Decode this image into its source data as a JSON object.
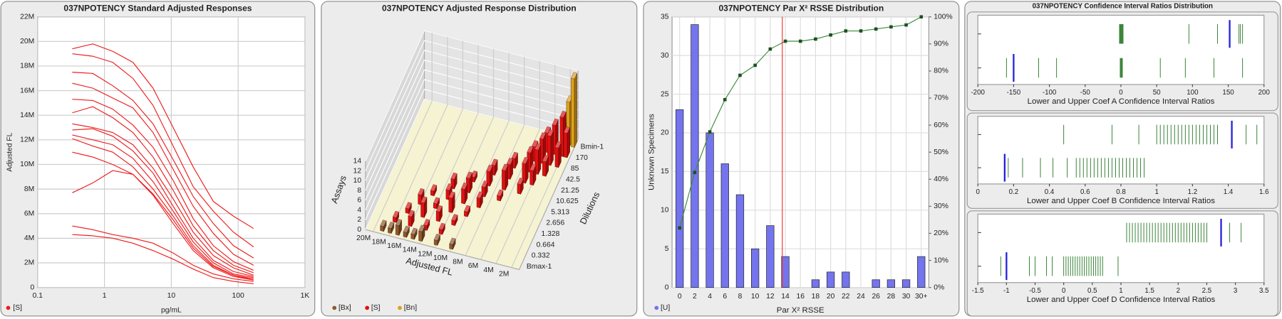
{
  "chart_data": [
    {
      "type": "line",
      "title": "037NPOTENCY Standard Adjusted Responses",
      "xlabel": "pg/mL",
      "ylabel": "Adjusted FL",
      "log_x": true,
      "xlim": [
        0.1,
        1000
      ],
      "xticks": [
        0.1,
        1,
        10,
        100,
        {
          "value": 1000,
          "label": "1K"
        }
      ],
      "ylim": [
        0,
        22000000.0
      ],
      "yticks": [
        0,
        {
          "value": 2000000.0,
          "label": "2M"
        },
        {
          "value": 4000000.0,
          "label": "4M"
        },
        {
          "value": 6000000.0,
          "label": "6M"
        },
        {
          "value": 8000000.0,
          "label": "8M"
        },
        {
          "value": 10000000.0,
          "label": "10M"
        },
        {
          "value": 12000000.0,
          "label": "12M"
        },
        {
          "value": 14000000.0,
          "label": "14M"
        },
        {
          "value": 16000000.0,
          "label": "16M"
        },
        {
          "value": 18000000.0,
          "label": "18M"
        },
        {
          "value": 20000000.0,
          "label": "20M"
        },
        {
          "value": 22000000.0,
          "label": "22M"
        }
      ],
      "grid": true,
      "color": "#ee1c1c",
      "legend": "[S]",
      "x": [
        0.33,
        0.67,
        1.33,
        2.67,
        5.33,
        10.67,
        21.3,
        42.5,
        85,
        170
      ],
      "series": [
        {
          "values": [
            19400000.0,
            19800000.0,
            19200000.0,
            18300000.0,
            16200000.0,
            13000000.0,
            9800000.0,
            7000000.0,
            5800000.0,
            4800000.0
          ]
        },
        {
          "values": [
            19000000.0,
            18800000.0,
            18300000.0,
            17000000.0,
            14800000.0,
            11500000.0,
            8200000.0,
            6200000.0,
            4500000.0,
            3300000.0
          ]
        },
        {
          "values": [
            17500000.0,
            17400000.0,
            16400000.0,
            15200000.0,
            13300000.0,
            10400000.0,
            7400000.0,
            5200000.0,
            3400000.0,
            2400000.0
          ]
        },
        {
          "values": [
            16600000.0,
            16200000.0,
            15400000.0,
            14600000.0,
            12600000.0,
            9600000.0,
            6600000.0,
            4400000.0,
            2700000.0,
            1800000.0
          ]
        },
        {
          "values": [
            15300000.0,
            15200000.0,
            14500000.0,
            13200000.0,
            11400000.0,
            8700000.0,
            5600000.0,
            3400000.0,
            2100000.0,
            1400000.0
          ]
        },
        {
          "values": [
            14200000.0,
            14700000.0,
            13800000.0,
            12600000.0,
            10600000.0,
            7900000.0,
            5000000.0,
            3000000.0,
            1800000.0,
            1200000.0
          ]
        },
        {
          "values": [
            13300000.0,
            13000000.0,
            12600000.0,
            11600000.0,
            9700000.0,
            7200000.0,
            4500000.0,
            2600000.0,
            1600000.0,
            1000000.0
          ]
        },
        {
          "values": [
            12800000.0,
            12900000.0,
            12300000.0,
            11100000.0,
            9300000.0,
            6600000.0,
            4000000.0,
            2200000.0,
            1300000.0,
            900000.0
          ]
        },
        {
          "values": [
            12400000.0,
            12000000.0,
            11600000.0,
            10500000.0,
            8600000.0,
            6200000.0,
            3700000.0,
            2000000.0,
            1100000.0,
            800000.0
          ]
        },
        {
          "values": [
            12100000.0,
            11500000.0,
            11000000.0,
            9800000.0,
            8000000.0,
            5800000.0,
            3400000.0,
            1800000.0,
            1000000.0,
            700000.0
          ]
        },
        {
          "values": [
            11000000.0,
            10600000.0,
            10000000.0,
            9200000.0,
            7500000.0,
            5200000.0,
            3000000.0,
            1600000.0,
            900000.0,
            600000.0
          ]
        },
        {
          "values": [
            7700000.0,
            8500000.0,
            9500000.0,
            9200000.0,
            7600000.0,
            5500000.0,
            3200000.0,
            1700000.0,
            1000000.0,
            600000.0
          ]
        },
        {
          "values": [
            5000000.0,
            4700000.0,
            4300000.0,
            4000000.0,
            3600000.0,
            2800000.0,
            1800000.0,
            1100000.0,
            700000.0,
            500000.0
          ]
        },
        {
          "values": [
            4300000.0,
            4200000.0,
            4000000.0,
            3600000.0,
            3000000.0,
            2300000.0,
            1500000.0,
            800000.0,
            500000.0,
            300000.0
          ]
        }
      ]
    },
    {
      "type": "bar3d",
      "title": "037NPOTENCY Adjusted Response Distribution",
      "xlabel": "Adjusted FL",
      "ylabel": "Dilutions",
      "zlabel": "Assays",
      "xlim": [
        1000000.0,
        21000000.0
      ],
      "xticks": [
        {
          "value": 2000000.0,
          "label": "2M"
        },
        {
          "value": 4000000.0,
          "label": "4M"
        },
        {
          "value": 6000000.0,
          "label": "6M"
        },
        {
          "value": 8000000.0,
          "label": "8M"
        },
        {
          "value": 10000000.0,
          "label": "10M"
        },
        {
          "value": 12000000.0,
          "label": "12M"
        },
        {
          "value": 14000000.0,
          "label": "14M"
        },
        {
          "value": 16000000.0,
          "label": "16M"
        },
        {
          "value": 18000000.0,
          "label": "18M"
        },
        {
          "value": 20000000.0,
          "label": "20M"
        }
      ],
      "categories": [
        "Bmax-1",
        "0.332",
        "0.664",
        "1.328",
        "2.656",
        "5.313",
        "10.625",
        "21.25",
        "42.5",
        "85",
        "170",
        "Bmin-1"
      ],
      "zlim": [
        0,
        14
      ],
      "zticks": [
        0,
        2,
        4,
        6,
        8,
        10,
        12,
        14
      ],
      "series": [
        {
          "name": "[Bx]",
          "color": "#8b5a2b",
          "x": [
            19000000.0,
            18000000.0,
            17000000.0,
            16000000.0,
            15000000.0,
            14000000.0,
            12000000.0,
            10000000.0
          ],
          "category": [
            0,
            0,
            0,
            0,
            0,
            0,
            0,
            0
          ],
          "values": [
            1,
            1,
            2,
            1,
            1,
            2,
            1,
            1
          ]
        },
        {
          "name": "[S]",
          "color": "#e01010",
          "x": [
            18000000.0,
            16000000.0,
            14000000.0,
            12000000.0,
            17000000.0,
            15000000.0,
            13000000.0,
            11000000.0,
            16000000.0,
            14000000.0,
            12000000.0,
            10000000.0,
            15000000.0,
            13000000.0,
            11000000.0,
            9000000.0,
            13000000.0,
            11000000.0,
            9000000.0,
            7000000.0,
            11000000.0,
            9000000.0,
            7000000.0,
            5000000.0,
            9000000.0,
            7000000.0,
            5000000.0,
            4000000.0,
            7000000.0,
            5000000.0,
            4000000.0,
            3000000.0,
            5000000.0,
            4000000.0,
            3000000.0,
            2000000.0,
            4000000.0,
            3000000.0,
            2000000.0,
            1500000.0
          ],
          "category": [
            1,
            1,
            1,
            1,
            2,
            2,
            2,
            2,
            3,
            3,
            3,
            3,
            4,
            4,
            4,
            4,
            5,
            5,
            5,
            5,
            6,
            6,
            6,
            6,
            7,
            7,
            7,
            7,
            8,
            8,
            8,
            8,
            9,
            9,
            9,
            9,
            10,
            10,
            10,
            10
          ],
          "values": [
            1,
            2,
            1,
            1,
            1,
            3,
            2,
            1,
            2,
            1,
            3,
            1,
            1,
            2,
            3,
            2,
            2,
            3,
            2,
            1,
            1,
            3,
            4,
            2,
            2,
            3,
            4,
            3,
            2,
            4,
            5,
            3,
            3,
            5,
            6,
            4,
            4,
            6,
            8,
            5
          ]
        },
        {
          "name": "[Bn]",
          "color": "#d9a21b",
          "x": [
            1200000.0,
            1800000.0,
            2400000.0
          ],
          "category": [
            11,
            11,
            11
          ],
          "values": [
            14,
            9,
            4
          ]
        }
      ]
    },
    {
      "type": "bar",
      "title": "037NPOTENCY Par X² RSSE Distribution",
      "xlabel": "Par X² RSSE",
      "ylabel": "Unknown Specimens",
      "xlim": [
        -1,
        33
      ],
      "xticks": [
        0,
        2,
        4,
        6,
        8,
        10,
        12,
        14,
        16,
        18,
        20,
        22,
        24,
        26,
        28,
        30,
        {
          "value": 32,
          "label": "30+"
        }
      ],
      "ylim": [
        0,
        35
      ],
      "yticks": [
        0,
        5,
        10,
        15,
        20,
        25,
        30,
        35
      ],
      "y2lim": [
        0,
        100
      ],
      "y2ticks": [
        {
          "value": 0,
          "label": "0%"
        },
        {
          "value": 10,
          "label": "10%"
        },
        {
          "value": 20,
          "label": "20%"
        },
        {
          "value": 30,
          "label": "30%"
        },
        {
          "value": 40,
          "label": "40%"
        },
        {
          "value": 50,
          "label": "50%"
        },
        {
          "value": 60,
          "label": "60%"
        },
        {
          "value": 70,
          "label": "70%"
        },
        {
          "value": 80,
          "label": "80%"
        },
        {
          "value": 90,
          "label": "90%"
        },
        {
          "value": 100,
          "label": "100%"
        }
      ],
      "grid": true,
      "reference_line": 13.6,
      "reference_color": "#ee3333",
      "x": [
        0,
        2,
        4,
        6,
        8,
        10,
        12,
        14,
        16,
        18,
        20,
        22,
        24,
        26,
        28,
        30,
        32
      ],
      "series": [
        {
          "name": "[U]",
          "color": "#7474ee",
          "values": [
            23,
            34,
            20,
            16,
            12,
            5,
            8,
            4,
            0,
            1,
            2,
            2,
            0,
            1,
            1,
            1,
            4
          ]
        },
        {
          "color": "#3c8c3c",
          "axis": "y2",
          "values": [
            22,
            42.5,
            57.5,
            69.4,
            78.4,
            82.1,
            88.1,
            91,
            91,
            91.8,
            93.3,
            94.8,
            94.8,
            95.5,
            96.3,
            97,
            100
          ]
        }
      ]
    },
    {
      "type": "strip",
      "title": "037NPOTENCY Confidence Interval Ratios Distribution",
      "color": "#2a7a2a",
      "highlight_color": "#2222dd",
      "panels": [
        {
          "xlabel": "Lower and Upper Coef A Confidence Interval Ratios",
          "xlim": [
            -200,
            200
          ],
          "xticks": [
            -200,
            -150,
            -100,
            -50,
            0,
            50,
            100,
            150,
            200
          ],
          "rows": [
            {
              "values": [
                -2,
                -1,
                0,
                1,
                2,
                3,
                95,
                135,
                165,
                167,
                170
              ],
              "highlight": 152
            },
            {
              "values": [
                -160,
                -115,
                -90,
                -1,
                0,
                1,
                2,
                55,
                90,
                130,
                170
              ],
              "highlight": -150
            }
          ]
        },
        {
          "xlabel": "Lower and Upper Coef B Confidence Interval Ratios",
          "xlim": [
            0,
            1.6
          ],
          "xticks": [
            0,
            0.2,
            0.4,
            0.6,
            0.8,
            1,
            1.2,
            1.4,
            1.6
          ],
          "rows": [
            {
              "values": [
                0.48,
                0.75,
                0.9,
                1,
                1.02,
                1.04,
                1.06,
                1.08,
                1.1,
                1.12,
                1.14,
                1.16,
                1.18,
                1.2,
                1.22,
                1.24,
                1.26,
                1.28,
                1.3,
                1.32,
                1.34,
                1.5,
                1.56
              ],
              "highlight": 1.42
            },
            {
              "values": [
                0.17,
                0.25,
                0.35,
                0.42,
                0.5,
                0.55,
                0.57,
                0.59,
                0.61,
                0.63,
                0.65,
                0.67,
                0.69,
                0.71,
                0.73,
                0.75,
                0.77,
                0.79,
                0.81,
                0.83,
                0.85,
                0.87,
                0.89,
                0.91,
                0.93
              ],
              "highlight": 0.15
            }
          ]
        },
        {
          "xlabel": "Lower and Upper Coef D Confidence Interval Ratios",
          "xlim": [
            -1.5,
            3.5
          ],
          "xticks": [
            -1.5,
            -1,
            -0.5,
            0,
            0.5,
            1,
            1.5,
            2,
            2.5,
            3,
            3.5
          ],
          "rows": [
            {
              "values": [
                1.1,
                1.15,
                1.2,
                1.25,
                1.3,
                1.35,
                1.4,
                1.45,
                1.5,
                1.55,
                1.6,
                1.65,
                1.7,
                1.75,
                1.8,
                1.85,
                1.9,
                1.95,
                2,
                2.05,
                2.1,
                2.15,
                2.2,
                2.25,
                2.3,
                2.35,
                2.4,
                2.45,
                2.5,
                2.9,
                3.1
              ],
              "highlight": 2.75
            },
            {
              "values": [
                -1.1,
                -0.6,
                -0.5,
                -0.3,
                -0.2,
                0,
                0.04,
                0.08,
                0.12,
                0.16,
                0.2,
                0.24,
                0.28,
                0.32,
                0.36,
                0.4,
                0.44,
                0.48,
                0.52,
                0.56,
                0.6,
                0.64,
                0.68,
                0.95
              ],
              "highlight": -1
            }
          ]
        }
      ]
    }
  ]
}
